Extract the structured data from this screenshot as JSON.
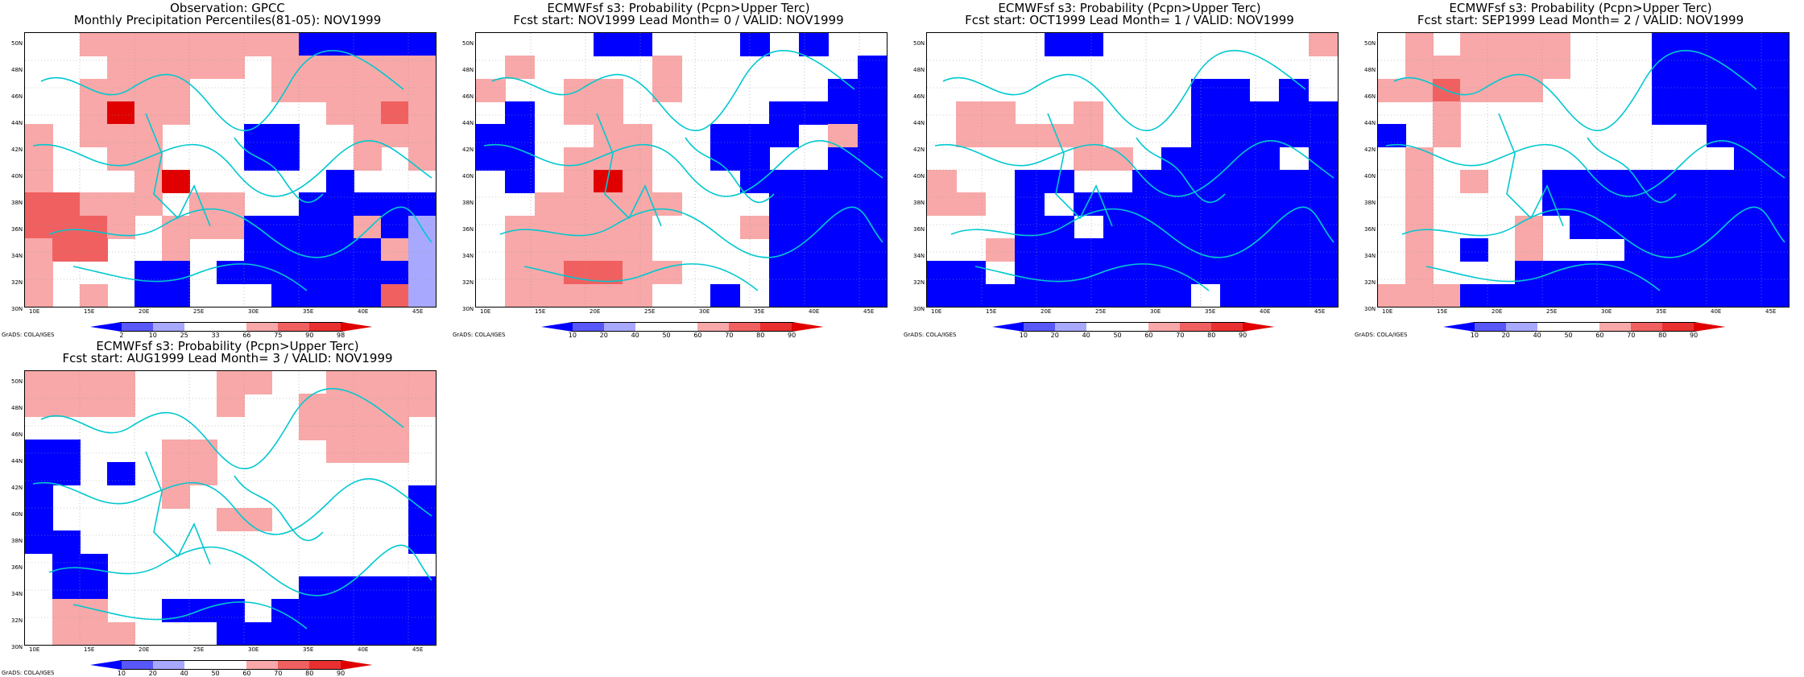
{
  "colors": {
    "deep_blue": "#0000ff",
    "mid_blue": "#5858f8",
    "light_blue": "#a8a8ff",
    "white": "#ffffff",
    "light_red": "#f8a8a8",
    "mid_red": "#f06060",
    "deep_red": "#e00000",
    "coast": "#00c8d0"
  },
  "map_axes": {
    "lat_labels": [
      "50N",
      "48N",
      "46N",
      "44N",
      "42N",
      "40N",
      "38N",
      "36N",
      "34N",
      "32N",
      "30N"
    ],
    "lon_labels": [
      "10E",
      "15E",
      "20E",
      "25E",
      "30E",
      "35E",
      "40E",
      "45E"
    ]
  },
  "credit": "GrADS: COLA/IGES",
  "panels": [
    {
      "title1": "Observation: GPCC",
      "title2": "Monthly Precipitation Percentiles(81-05): NOV1999",
      "colorbar_labels": [
        "2",
        "10",
        "25",
        "33",
        "66",
        "75",
        "90",
        "98"
      ],
      "grid": [
        "WWLLRRRRRRBBBBB",
        "WWWRRRRRWRRRRRR",
        "WWRRRRWWWRRRRRR",
        "WWRdRRWWWWWRRDR",
        "LWRRRWWWBBWWRRR",
        "LWWRRWWWBBWWRWR",
        "LWWWRdWWWWWBWWW",
        "DDRRRWRRWWBBBBB",
        "DDDRWRRRBBBBLBb",
        "RDDWWRWWBBBBBLb",
        "LWWWBBWBBBBBBBb",
        "LWRWBBWWWBBBBDb"
      ]
    },
    {
      "title1": "ECMWFsf s3: Probability (Pcpn>Upper Terc)",
      "title2": "Fcst start: NOV1999  Lead Month= 0 / VALID: NOV1999",
      "colorbar_labels": [
        "10",
        "20",
        "40",
        "50",
        "60",
        "70",
        "80",
        "90"
      ],
      "grid": [
        "WWWWBBWWWBWBWW",
        "WRWWWWRWWWWWWB",
        "LWWRRWRWWWWWBB",
        "WBWRRWWWWWBBBB",
        "BBWWRRWWBBBWRB",
        "BBWLRRWWBBWWBB",
        "WBWRdRWWWBBBBB",
        "WWRRRRRWWWBBBB",
        "WRRRRRWWWLBBBB",
        "WRRRRRWWWWBBBB",
        "WRRDDRRWWWBBBB",
        "WRRRRRWWBWBBBB"
      ]
    },
    {
      "title1": "ECMWFsf s3: Probability (Pcpn>Upper Terc)",
      "title2": "Fcst start: OCT1999  Lead Month= 1 / VALID: NOV1999",
      "colorbar_labels": [
        "10",
        "20",
        "40",
        "50",
        "60",
        "70",
        "80",
        "90"
      ],
      "grid": [
        "WWWWBBWWWWWWWR",
        "WWWWWWWWWWWWWW",
        "WWWWWWWWWBBWBW",
        "WRRWWRWWWBBBBB",
        "WRRRRRWWWBBBBB",
        "WWWWWRRWBBBBWB",
        "RWWBBWWBBBBBBB",
        "RRWBWBBBBBBBBB",
        "WWWBBWBBBBBBBB",
        "WWRBBBBBBBBBBB",
        "BBWBBBBBBBBBBB",
        "BBBBBBBBBWBBBB"
      ]
    },
    {
      "title1": "ECMWFsf s3: Probability (Pcpn>Upper Terc)",
      "title2": "Fcst start: SEP1999  Lead Month= 2 / VALID: NOV1999",
      "colorbar_labels": [
        "10",
        "20",
        "40",
        "50",
        "60",
        "70",
        "80",
        "90"
      ],
      "grid": [
        "WRWRRRRWWWBBBBB",
        "WRRRRRRWWWBBBBB",
        "RRDRRRWWWWBBBBB",
        "WWRWWWWWWWBBBBB",
        "BWRWWWWWWWWWBBB",
        "WRWWWWWWWWWWWBB",
        "WRWRWWBBBBBBBBB",
        "WRWWWWBBBBBBBBB",
        "WRWWWRWBBBBBBBB",
        "WRWBWRWWWBBBBBB",
        "WRWWWBBBBBBBBBB",
        "RRRBBBBBBBBBBBB"
      ]
    },
    {
      "title1": "ECMWFsf s3: Probability (Pcpn>Upper Terc)",
      "title2": "Fcst start: AUG1999  Lead Month= 3 / VALID: NOV1999",
      "colorbar_labels": [
        "10",
        "20",
        "40",
        "50",
        "60",
        "70",
        "80",
        "90"
      ],
      "grid": [
        "RRRRWWWRRWWRRRR",
        "RRRRWWWRWWRRRRR",
        "WWWWWWWWWWRRRRW",
        "BBWWWRRWWWWRRRW",
        "BBWBWRRWWWWWWWW",
        "BWWWWRWWWWWWWWB",
        "BWWWWWWRRWWWWWB",
        "BBWWWWWWWWWWWWB",
        "WBBWWWWWWWWWWWW",
        "WBBWWWWWWWBBBBB",
        "WRRWWBBBWBBBBBB",
        "WRRRWWWBBBBBBBB"
      ]
    }
  ]
}
